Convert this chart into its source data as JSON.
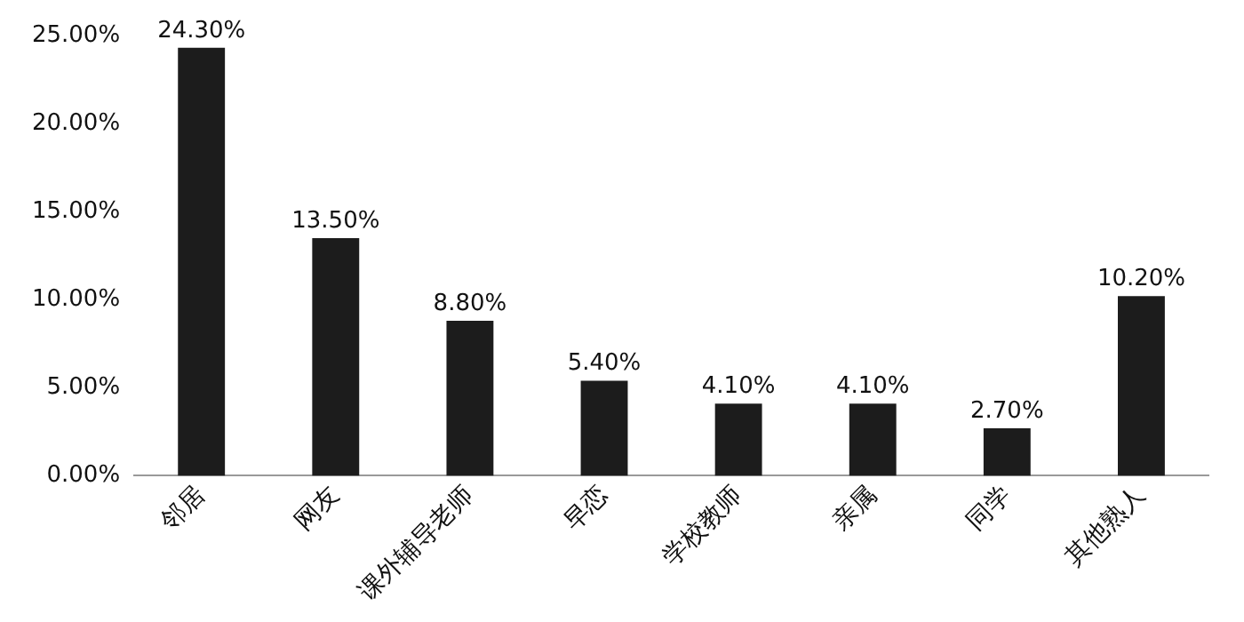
{
  "chart_data": {
    "type": "bar",
    "categories": [
      "邻居",
      "网友",
      "课外辅导老师",
      "早恋",
      "学校教师",
      "亲属",
      "同学",
      "其他熟人"
    ],
    "values": [
      24.3,
      13.5,
      8.8,
      5.4,
      4.1,
      4.1,
      2.7,
      10.2
    ],
    "value_labels": [
      "24.30%",
      "13.50%",
      "8.80%",
      "5.40%",
      "4.10%",
      "4.10%",
      "2.70%",
      "10.20%"
    ],
    "color": "#1c1c1c",
    "ylim": [
      0,
      25
    ],
    "yticks": [
      {
        "value": 0,
        "label": "0.00%"
      },
      {
        "value": 5,
        "label": "5.00%"
      },
      {
        "value": 10,
        "label": "10.00%"
      },
      {
        "value": 15,
        "label": "15.00%"
      },
      {
        "value": 20,
        "label": "20.00%"
      },
      {
        "value": 25,
        "label": "25.00%"
      }
    ],
    "grid": false,
    "legend": false
  }
}
